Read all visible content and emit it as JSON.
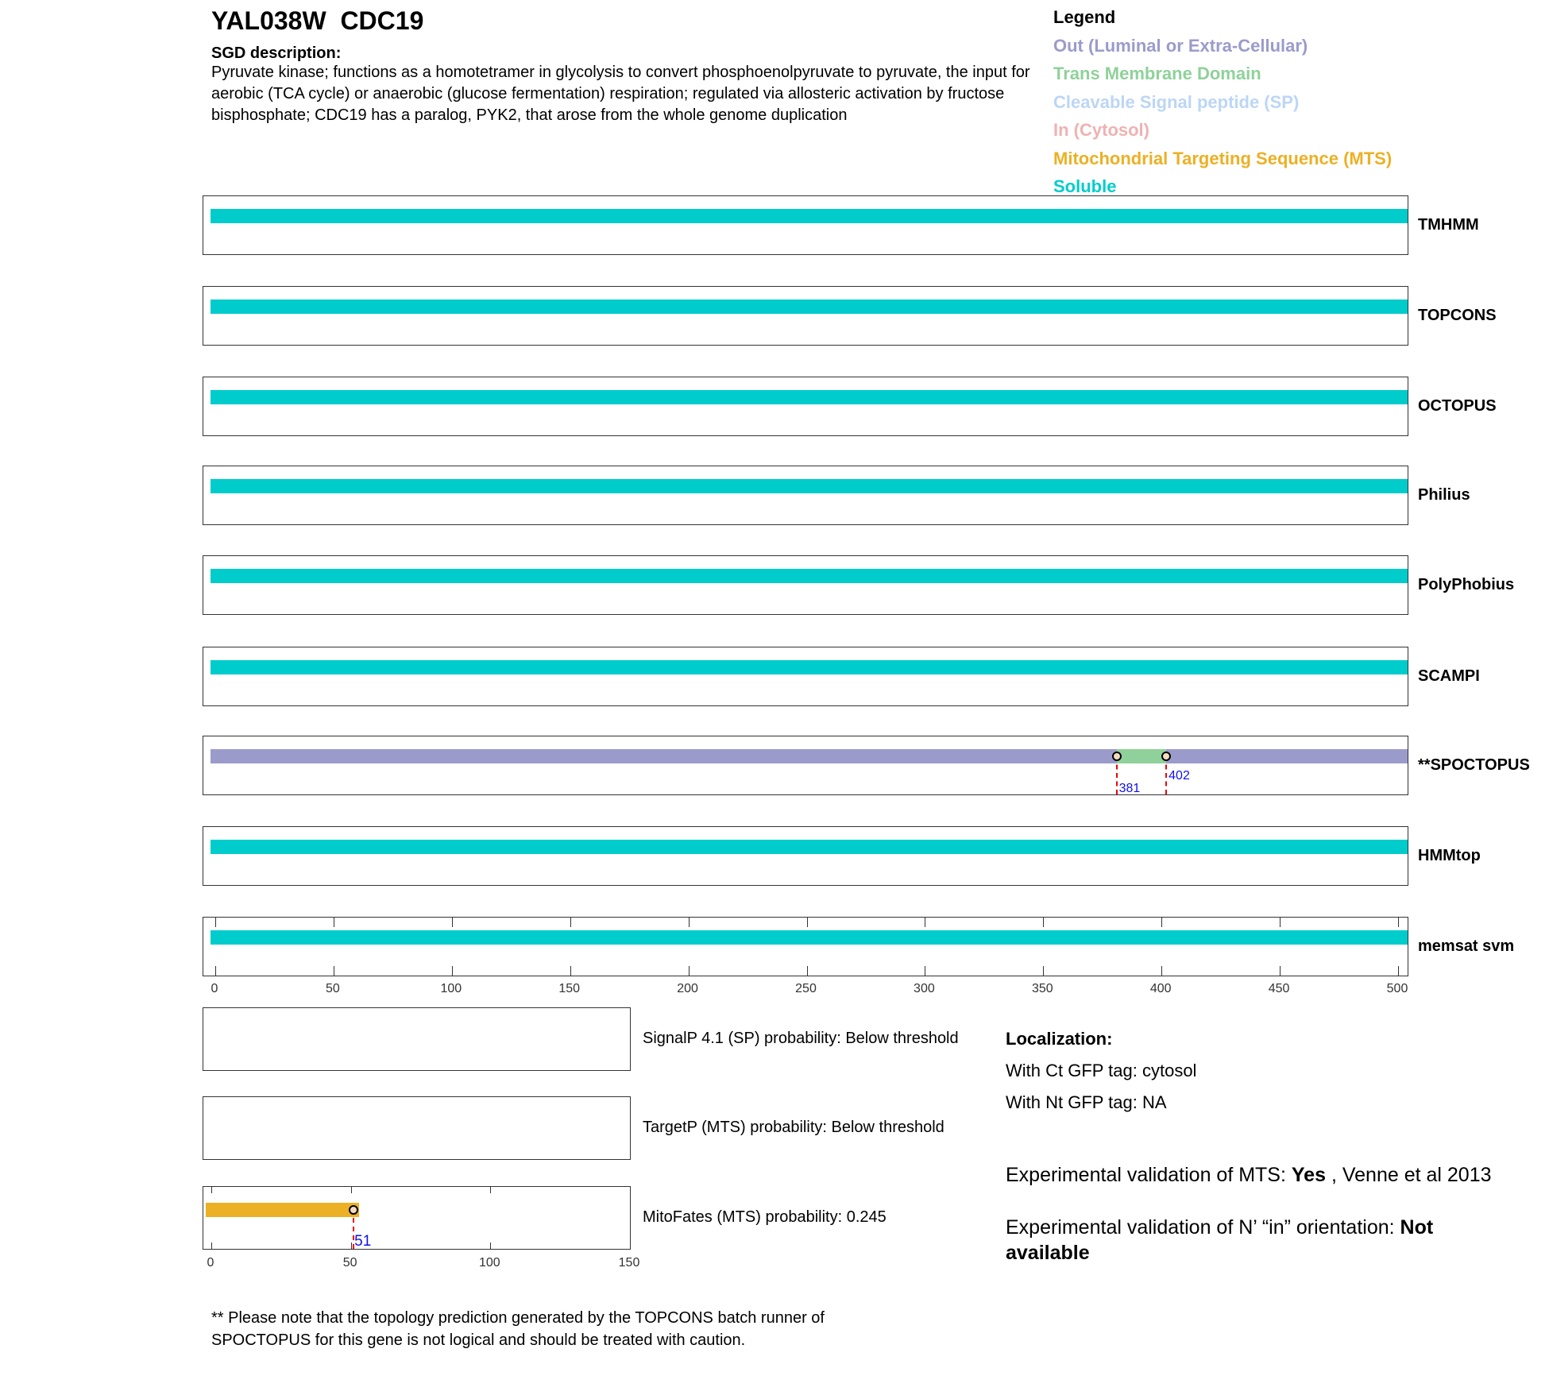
{
  "header": {
    "gene_id": "YAL038W",
    "gene_name": "CDC19",
    "desc_label": "SGD description:",
    "description": "Pyruvate kinase; functions as a homotetramer in glycolysis to convert phosphoenolpyruvate to pyruvate, the input for aerobic (TCA cycle) or anaerobic (glucose fermentation) respiration; regulated via allosteric activation by fructose bisphosphate; CDC19 has a paralog, PYK2, that arose from the whole genome duplication"
  },
  "legend": {
    "title": "Legend",
    "items": [
      {
        "label": "Out (Luminal or Extra-Cellular)",
        "color": "#9b9bcb"
      },
      {
        "label": "Trans Membrane Domain",
        "color": "#8fd19a"
      },
      {
        "label": "Cleavable Signal peptide (SP)",
        "color": "#bcd6f5"
      },
      {
        "label": "In (Cytosol)",
        "color": "#eeb2b2"
      },
      {
        "label": "Mitochondrial Targeting Sequence (MTS)",
        "color": "#ecb024"
      },
      {
        "label": "Soluble",
        "color": "#00cccc"
      }
    ]
  },
  "predictors": [
    {
      "name": "TMHMM",
      "segments": [
        {
          "start": -2,
          "end": 504,
          "type": "Soluble"
        }
      ]
    },
    {
      "name": "TOPCONS",
      "segments": [
        {
          "start": -2,
          "end": 504,
          "type": "Soluble"
        }
      ]
    },
    {
      "name": "OCTOPUS",
      "segments": [
        {
          "start": -2,
          "end": 504,
          "type": "Soluble"
        }
      ]
    },
    {
      "name": "Philius",
      "segments": [
        {
          "start": -2,
          "end": 504,
          "type": "Soluble"
        }
      ]
    },
    {
      "name": "PolyPhobius",
      "segments": [
        {
          "start": -2,
          "end": 504,
          "type": "Soluble"
        }
      ]
    },
    {
      "name": "SCAMPI",
      "segments": [
        {
          "start": -2,
          "end": 504,
          "type": "Soluble"
        }
      ]
    },
    {
      "name": "**SPOCTOPUS",
      "segments": [
        {
          "start": -2,
          "end": 381,
          "type": "Out"
        },
        {
          "start": 381,
          "end": 402,
          "type": "TM"
        },
        {
          "start": 402,
          "end": 504,
          "type": "Out"
        }
      ],
      "markers": [
        "381",
        "402"
      ]
    },
    {
      "name": "HMMtop",
      "segments": [
        {
          "start": -2,
          "end": 504,
          "type": "Soluble"
        }
      ]
    },
    {
      "name": "memsat svm",
      "segments": [
        {
          "start": -2,
          "end": 504,
          "type": "Soluble"
        }
      ]
    }
  ],
  "axis": {
    "min": 0,
    "max": 500,
    "ticks": [
      "0",
      "50",
      "100",
      "150",
      "200",
      "250",
      "300",
      "350",
      "400",
      "450",
      "500"
    ]
  },
  "signal": {
    "signalp": "SignalP 4.1 (SP) probability: Below threshold",
    "targetp": "TargetP (MTS) probability: Below threshold",
    "mitofates": "MitoFates (MTS) probability: 0.245",
    "mitofates_segment": {
      "start": -2,
      "end": 53,
      "type": "MTS"
    },
    "mitofates_marker": "51",
    "axis_ticks": [
      "0",
      "50",
      "100",
      "150"
    ]
  },
  "localization": {
    "title": "Localization:",
    "ct": "With Ct GFP tag: cytosol",
    "nt": "With Nt GFP tag: NA"
  },
  "experimental": {
    "mts_prefix": "Experimental validation of MTS: ",
    "mts_value": "Yes",
    "mts_suffix": " , Venne et al 2013",
    "orient_prefix": "Experimental validation of N’ “in” orientation: ",
    "orient_value": "Not available"
  },
  "note": "** Please note that the topology prediction generated by the TOPCONS batch runner of SPOCTOPUS for this gene is not logical and should be treated with caution."
}
